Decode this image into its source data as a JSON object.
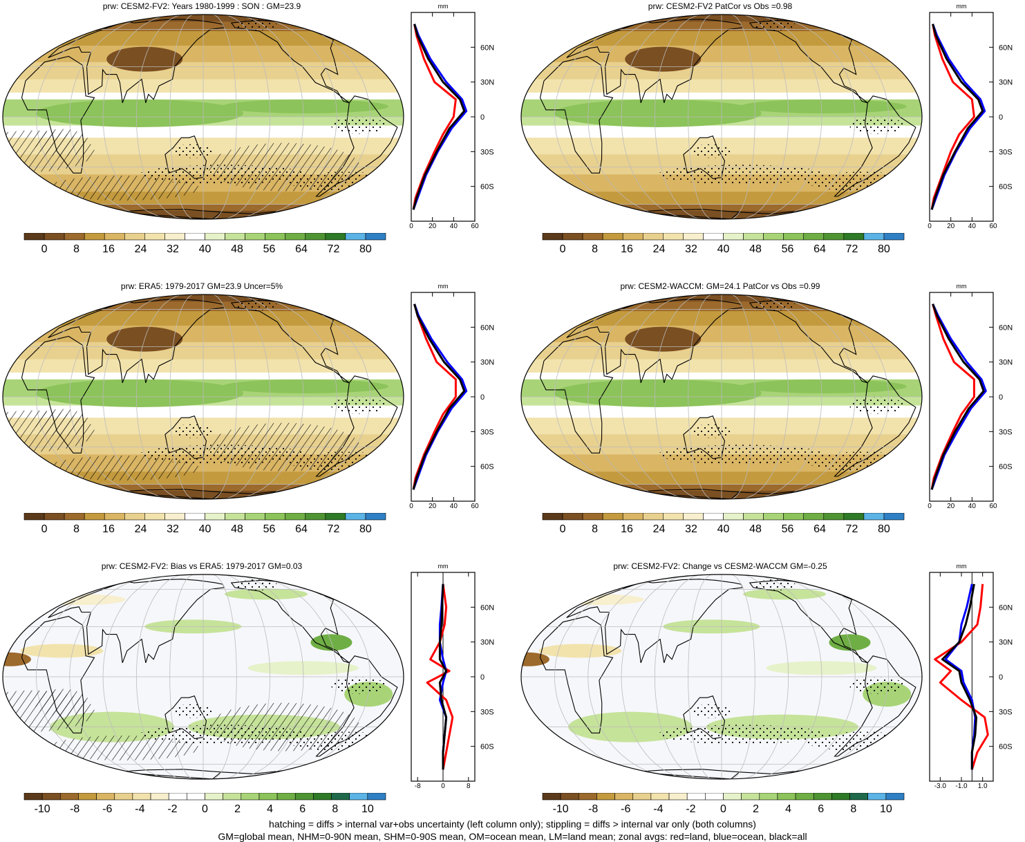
{
  "panels": [
    {
      "title": "prw: CESM2-FV2: Years 1980-1999 : SON : GM=23.9",
      "map": "clim",
      "hatching": true,
      "stipple": true,
      "zonal": {
        "unit": "mm",
        "xticks": [
          "0",
          "20",
          "40",
          "60"
        ],
        "yticks": [
          "60N",
          "30N",
          "0",
          "30S",
          "60S"
        ],
        "xlim": [
          0,
          60
        ]
      },
      "colorbar": [
        "0",
        "8",
        "16",
        "24",
        "32",
        "40",
        "48",
        "56",
        "64",
        "72",
        "80"
      ]
    },
    {
      "title": "prw: CESM2-FV2 PatCor vs Obs =0.98",
      "map": "clim",
      "hatching": false,
      "stipple": true,
      "zonal": {
        "unit": "mm",
        "xticks": [
          "0",
          "20",
          "40",
          "60"
        ],
        "yticks": [
          "60N",
          "30N",
          "0",
          "30S",
          "60S"
        ],
        "xlim": [
          0,
          60
        ]
      },
      "colorbar": [
        "0",
        "8",
        "16",
        "24",
        "32",
        "40",
        "48",
        "56",
        "64",
        "72",
        "80"
      ]
    },
    {
      "title": "prw: ERA5: 1979-2017 GM=23.9 Uncer=5%",
      "map": "clim",
      "hatching": true,
      "stipple": true,
      "zonal": {
        "unit": "mm",
        "xticks": [
          "0",
          "20",
          "40",
          "60"
        ],
        "yticks": [
          "60N",
          "30N",
          "0",
          "30S",
          "60S"
        ],
        "xlim": [
          0,
          60
        ]
      },
      "colorbar": [
        "0",
        "8",
        "16",
        "24",
        "32",
        "40",
        "48",
        "56",
        "64",
        "72",
        "80"
      ]
    },
    {
      "title": "prw: CESM2-WACCM: GM=24.1 PatCor vs Obs =0.99",
      "map": "clim",
      "hatching": false,
      "stipple": true,
      "zonal": {
        "unit": "mm",
        "xticks": [
          "0",
          "20",
          "40",
          "60"
        ],
        "yticks": [
          "60N",
          "30N",
          "0",
          "30S",
          "60S"
        ],
        "xlim": [
          0,
          60
        ]
      },
      "colorbar": [
        "0",
        "8",
        "16",
        "24",
        "32",
        "40",
        "48",
        "56",
        "64",
        "72",
        "80"
      ]
    },
    {
      "title": "prw: CESM2-FV2: Bias vs ERA5: 1979-2017  GM=0.03",
      "map": "diff",
      "hatching": true,
      "stipple": true,
      "zonal": {
        "unit": "mm",
        "xticks": [
          "-8",
          "0",
          "8"
        ],
        "yticks": [
          "60N",
          "30N",
          "0",
          "30S",
          "60S"
        ],
        "xlim": [
          -10,
          10
        ]
      },
      "colorbar": [
        "-10",
        "-8",
        "-6",
        "-4",
        "-2",
        "0",
        "2",
        "4",
        "6",
        "8",
        "10"
      ]
    },
    {
      "title": "prw: CESM2-FV2: Change vs CESM2-WACCM GM=-0.25",
      "map": "diff",
      "hatching": false,
      "stipple": true,
      "zonal": {
        "unit": "mm",
        "xticks": [
          "-3.0",
          "-1.0",
          "1.0"
        ],
        "yticks": [
          "60N",
          "30N",
          "0",
          "30S",
          "60S"
        ],
        "xlim": [
          -4,
          2
        ]
      },
      "colorbar": [
        "-10",
        "-8",
        "-6",
        "-4",
        "-2",
        "0",
        "2",
        "4",
        "6",
        "8",
        "10"
      ]
    }
  ],
  "colors": {
    "clim": [
      "#5a3a1a",
      "#7a4f22",
      "#9c6a2c",
      "#c39a3e",
      "#d9b564",
      "#e8d08e",
      "#f2e3ad",
      "#f7efcd",
      "#ffffff",
      "#e6f2c9",
      "#c6e39a",
      "#a8d477",
      "#8cc35a",
      "#6fae45",
      "#4e9433",
      "#2e7a26",
      "#5bb3e6",
      "#2f7fc4"
    ],
    "diff": [
      "#5a3a1a",
      "#7a4f22",
      "#9c6a2c",
      "#c39a3e",
      "#d9b564",
      "#e8d08e",
      "#f2e3ad",
      "#f7efcd",
      "#ffffff",
      "#ffffff",
      "#e6f2c9",
      "#c6e39a",
      "#a8d477",
      "#8cc35a",
      "#6fae45",
      "#4e9433",
      "#2e7a26",
      "#1f6a4a",
      "#5bb3e6",
      "#2f7fc4"
    ],
    "land": "#e3c477",
    "ocean_clim": "#a8d477",
    "red": "#ff0000",
    "blue": "#0000ff",
    "black": "#000000"
  },
  "chart_data": [
    {
      "type": "line",
      "title": "prw: CESM2-FV2: Years 1980-1999 : SON : GM=23.9",
      "xlabel": "mm",
      "xlim": [
        0,
        60
      ],
      "ylim": [
        -90,
        90
      ],
      "series": [
        {
          "name": "red=land",
          "x": [
            3,
            5,
            12,
            22,
            42,
            40,
            30,
            22,
            12,
            4,
            2
          ],
          "y": [
            80,
            70,
            50,
            30,
            15,
            0,
            -15,
            -30,
            -50,
            -70,
            -80
          ]
        },
        {
          "name": "blue=ocean",
          "x": [
            3,
            7,
            18,
            33,
            48,
            52,
            38,
            25,
            14,
            6,
            2
          ],
          "y": [
            80,
            70,
            50,
            30,
            15,
            5,
            -10,
            -30,
            -50,
            -70,
            -80
          ]
        },
        {
          "name": "black=all",
          "x": [
            3,
            6,
            16,
            30,
            46,
            50,
            36,
            24,
            13,
            5,
            2
          ],
          "y": [
            80,
            70,
            50,
            30,
            15,
            5,
            -10,
            -30,
            -50,
            -70,
            -80
          ]
        }
      ]
    },
    {
      "type": "line",
      "title": "prw: CESM2-FV2 PatCor vs Obs =0.98",
      "xlabel": "mm",
      "xlim": [
        0,
        60
      ],
      "ylim": [
        -90,
        90
      ],
      "series": [
        {
          "name": "red=land",
          "x": [
            3,
            5,
            12,
            22,
            40,
            42,
            28,
            20,
            12,
            4,
            2
          ],
          "y": [
            80,
            70,
            50,
            30,
            15,
            0,
            -15,
            -30,
            -50,
            -70,
            -80
          ]
        },
        {
          "name": "blue=ocean",
          "x": [
            3,
            7,
            18,
            33,
            48,
            52,
            38,
            25,
            14,
            6,
            2
          ],
          "y": [
            80,
            70,
            50,
            30,
            15,
            5,
            -10,
            -30,
            -50,
            -70,
            -80
          ]
        },
        {
          "name": "black=all",
          "x": [
            3,
            6,
            16,
            30,
            46,
            50,
            36,
            24,
            13,
            5,
            2
          ],
          "y": [
            80,
            70,
            50,
            30,
            15,
            5,
            -10,
            -30,
            -50,
            -70,
            -80
          ]
        }
      ]
    },
    {
      "type": "line",
      "title": "prw: ERA5: 1979-2017 GM=23.9 Uncer=5%",
      "xlabel": "mm",
      "xlim": [
        0,
        60
      ],
      "ylim": [
        -90,
        90
      ],
      "series": [
        {
          "name": "red=land",
          "x": [
            3,
            6,
            14,
            24,
            42,
            42,
            30,
            22,
            12,
            4,
            2
          ],
          "y": [
            80,
            70,
            50,
            30,
            15,
            0,
            -15,
            -30,
            -50,
            -70,
            -80
          ]
        },
        {
          "name": "blue=ocean",
          "x": [
            3,
            7,
            19,
            34,
            48,
            52,
            38,
            25,
            14,
            6,
            2
          ],
          "y": [
            80,
            70,
            50,
            30,
            15,
            5,
            -10,
            -30,
            -50,
            -70,
            -80
          ]
        },
        {
          "name": "black=all",
          "x": [
            3,
            6,
            17,
            31,
            46,
            50,
            36,
            24,
            13,
            5,
            2
          ],
          "y": [
            80,
            70,
            50,
            30,
            15,
            5,
            -10,
            -30,
            -50,
            -70,
            -80
          ]
        }
      ]
    },
    {
      "type": "line",
      "title": "prw: CESM2-WACCM: GM=24.1 PatCor vs Obs =0.99",
      "xlabel": "mm",
      "xlim": [
        0,
        60
      ],
      "ylim": [
        -90,
        90
      ],
      "series": [
        {
          "name": "red=land",
          "x": [
            3,
            6,
            13,
            23,
            42,
            42,
            30,
            22,
            12,
            4,
            2
          ],
          "y": [
            80,
            70,
            50,
            30,
            15,
            0,
            -15,
            -30,
            -50,
            -70,
            -80
          ]
        },
        {
          "name": "blue=ocean",
          "x": [
            3,
            8,
            20,
            35,
            49,
            53,
            39,
            26,
            14,
            6,
            2
          ],
          "y": [
            80,
            70,
            50,
            30,
            15,
            5,
            -10,
            -30,
            -50,
            -70,
            -80
          ]
        },
        {
          "name": "black=all",
          "x": [
            3,
            7,
            18,
            32,
            47,
            51,
            37,
            24,
            13,
            5,
            2
          ],
          "y": [
            80,
            70,
            50,
            30,
            15,
            5,
            -10,
            -30,
            -50,
            -70,
            -80
          ]
        }
      ]
    },
    {
      "type": "line",
      "title": "prw: CESM2-FV2: Bias vs ERA5: 1979-2017  GM=0.03",
      "xlabel": "mm",
      "xlim": [
        -10,
        10
      ],
      "ylim": [
        -90,
        90
      ],
      "series": [
        {
          "name": "red=land",
          "x": [
            0,
            1,
            0.5,
            -1,
            -4,
            2,
            -5,
            1,
            3,
            2,
            1,
            0
          ],
          "y": [
            80,
            60,
            45,
            30,
            15,
            5,
            -5,
            -20,
            -35,
            -50,
            -65,
            -80
          ]
        },
        {
          "name": "blue=ocean",
          "x": [
            0,
            -0.5,
            -1,
            -1,
            0,
            1,
            0,
            -1,
            1,
            0.5,
            0,
            0
          ],
          "y": [
            80,
            60,
            45,
            30,
            15,
            5,
            -5,
            -20,
            -35,
            -50,
            -65,
            -80
          ]
        },
        {
          "name": "black=all",
          "x": [
            0,
            -0.3,
            -0.5,
            -1,
            -1,
            1,
            -1,
            -0.5,
            1,
            0.5,
            0,
            0
          ],
          "y": [
            80,
            60,
            45,
            30,
            15,
            5,
            -5,
            -20,
            -35,
            -50,
            -65,
            -80
          ]
        }
      ]
    },
    {
      "type": "line",
      "title": "prw: CESM2-FV2: Change vs CESM2-WACCM GM=-0.25",
      "xlabel": "mm",
      "xlim": [
        -4,
        2
      ],
      "ylim": [
        -90,
        90
      ],
      "series": [
        {
          "name": "red=land",
          "x": [
            1,
            0.8,
            0.5,
            -1,
            -3.5,
            -2,
            -3,
            -1,
            1.2,
            1.5,
            0.5,
            0
          ],
          "y": [
            80,
            60,
            45,
            30,
            15,
            5,
            -5,
            -20,
            -35,
            -50,
            -65,
            -80
          ]
        },
        {
          "name": "blue=ocean",
          "x": [
            0,
            -0.5,
            -1,
            -1.2,
            -2.5,
            -1,
            -0.8,
            0,
            0.3,
            0.2,
            0,
            0
          ],
          "y": [
            80,
            60,
            45,
            30,
            15,
            5,
            -5,
            -20,
            -35,
            -50,
            -65,
            -80
          ]
        },
        {
          "name": "black=all",
          "x": [
            0.2,
            -0.2,
            -0.6,
            -1.2,
            -2.8,
            -1.2,
            -1,
            -0.2,
            0.4,
            0.3,
            0,
            0
          ],
          "y": [
            80,
            60,
            45,
            30,
            15,
            5,
            -5,
            -20,
            -35,
            -50,
            -65,
            -80
          ]
        }
      ]
    }
  ],
  "footer": {
    "line1": "hatching = diffs > internal var+obs uncertainty (left column only); stippling = diffs > internal var only (both columns)",
    "line2": "GM=global mean, NHM=0-90N mean, SHM=0-90S mean, OM=ocean mean, LM=land mean; zonal avgs: red=land, blue=ocean, black=all"
  }
}
